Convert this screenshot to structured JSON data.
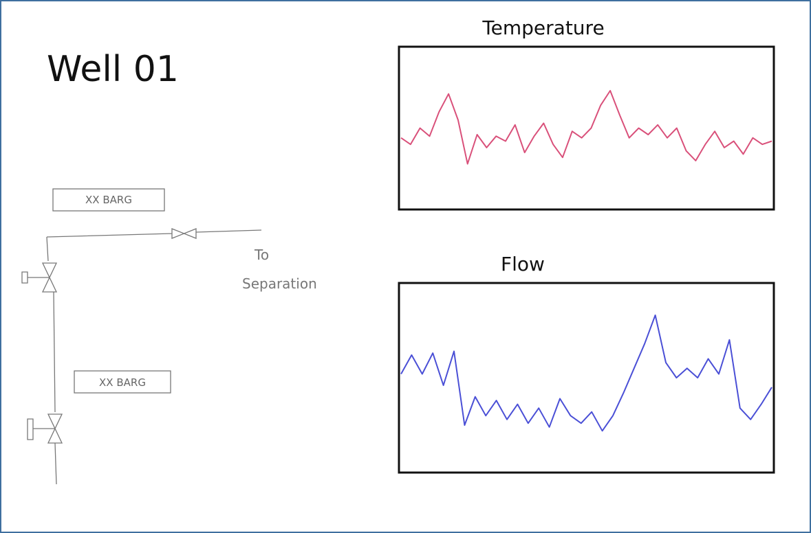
{
  "header": {
    "title": "Well 01"
  },
  "diagram": {
    "gauges": [
      "XX BARG",
      "XX BARG"
    ],
    "destination": [
      "To",
      "Separation"
    ]
  },
  "chart_data": [
    {
      "type": "line",
      "title": "Temperature",
      "color": "#d9507a",
      "ylim": [
        0,
        100
      ],
      "values": [
        44,
        40,
        50,
        45,
        60,
        71,
        55,
        28,
        46,
        38,
        45,
        42,
        52,
        35,
        45,
        53,
        40,
        32,
        48,
        44,
        50,
        64,
        73,
        58,
        44,
        50,
        46,
        52,
        44,
        50,
        36,
        30,
        40,
        48,
        38,
        42,
        34,
        44,
        40,
        42
      ]
    },
    {
      "type": "line",
      "title": "Flow",
      "color": "#4a4fd6",
      "ylim": [
        0,
        100
      ],
      "values": [
        52,
        62,
        52,
        63,
        46,
        64,
        25,
        40,
        30,
        38,
        28,
        36,
        26,
        34,
        24,
        39,
        30,
        26,
        32,
        22,
        30,
        42,
        55,
        68,
        83,
        58,
        50,
        55,
        50,
        60,
        52,
        70,
        34,
        28,
        36,
        45
      ]
    }
  ]
}
